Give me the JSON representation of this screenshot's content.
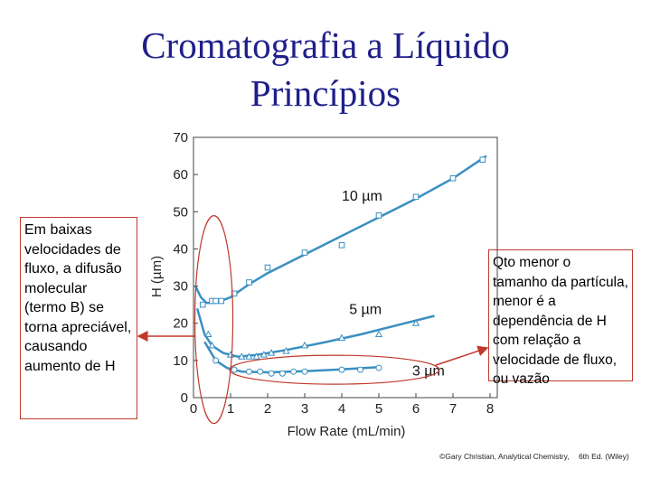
{
  "slide": {
    "title_line1": "Cromatografia a Líquido",
    "title_line2": "Princípios",
    "left_note": "Em baixas velocidades de fluxo, a difusão molecular (termo B) se torna apreciável, causando aumento de H",
    "right_note": "Qto menor o tamanho da partícula, menor é a dependência de H com relação a velocidade de fluxo, ou vazão",
    "credit_part1": "©Gary Christian, Analytical Chemistry,",
    "credit_part2": "6th Ed. (Wiley)"
  },
  "colors": {
    "title": "#1f1f8a",
    "curve": "#3a8fc1",
    "annotation": "#c0392b"
  },
  "chart_data": {
    "type": "scatter",
    "xlabel": "Flow Rate (mL/min)",
    "ylabel": "H (µm)",
    "xlim": [
      0,
      8
    ],
    "ylim": [
      0,
      70
    ],
    "x_ticks": [
      0,
      1,
      2,
      3,
      4,
      5,
      6,
      7,
      8
    ],
    "y_ticks": [
      0,
      10,
      20,
      30,
      40,
      50,
      60,
      70
    ],
    "grid": false,
    "series": [
      {
        "name": "10 µm",
        "marker": "square",
        "points": [
          [
            0.25,
            25
          ],
          [
            0.5,
            26
          ],
          [
            0.6,
            26
          ],
          [
            0.75,
            26
          ],
          [
            1.1,
            28
          ],
          [
            1.5,
            31
          ],
          [
            2.0,
            35
          ],
          [
            3.0,
            39
          ],
          [
            4.0,
            41
          ],
          [
            5.0,
            49
          ],
          [
            6.0,
            54
          ],
          [
            7.0,
            59
          ],
          [
            7.8,
            64
          ]
        ],
        "curve": [
          [
            0.05,
            30
          ],
          [
            0.2,
            27
          ],
          [
            0.35,
            25.5
          ],
          [
            0.6,
            25.5
          ],
          [
            1.0,
            27
          ],
          [
            1.5,
            30.5
          ],
          [
            2.0,
            33.5
          ],
          [
            3.0,
            38.5
          ],
          [
            4.0,
            43.5
          ],
          [
            5.0,
            48.5
          ],
          [
            6.0,
            53.5
          ],
          [
            7.0,
            59
          ],
          [
            7.9,
            65
          ]
        ]
      },
      {
        "name": "5 µm",
        "marker": "triangle",
        "points": [
          [
            0.4,
            17
          ],
          [
            0.5,
            14
          ],
          [
            1.0,
            11.5
          ],
          [
            1.3,
            11
          ],
          [
            1.5,
            11
          ],
          [
            1.7,
            11
          ],
          [
            1.9,
            11.5
          ],
          [
            2.1,
            12
          ],
          [
            2.5,
            12.5
          ],
          [
            3.0,
            14
          ],
          [
            4.0,
            16
          ],
          [
            5.0,
            17
          ],
          [
            6.0,
            20
          ]
        ],
        "curve": [
          [
            0.1,
            24
          ],
          [
            0.3,
            17
          ],
          [
            0.5,
            14
          ],
          [
            0.8,
            12
          ],
          [
            1.2,
            11
          ],
          [
            1.7,
            11.5
          ],
          [
            2.5,
            12.8
          ],
          [
            3.5,
            14.8
          ],
          [
            4.5,
            17
          ],
          [
            5.5,
            19.5
          ],
          [
            6.5,
            22
          ]
        ]
      },
      {
        "name": "3 µm",
        "marker": "circle",
        "points": [
          [
            0.6,
            10
          ],
          [
            1.1,
            7.5
          ],
          [
            1.5,
            7
          ],
          [
            1.8,
            7
          ],
          [
            2.1,
            6.5
          ],
          [
            2.4,
            6.5
          ],
          [
            2.7,
            7
          ],
          [
            3.0,
            7
          ],
          [
            4.0,
            7.5
          ],
          [
            4.5,
            7.5
          ],
          [
            5.0,
            8
          ]
        ],
        "curve": [
          [
            0.3,
            15
          ],
          [
            0.6,
            10
          ],
          [
            0.9,
            8
          ],
          [
            1.3,
            7
          ],
          [
            2.0,
            6.8
          ],
          [
            3.0,
            7.1
          ],
          [
            4.0,
            7.6
          ],
          [
            5.0,
            8.2
          ]
        ]
      }
    ]
  }
}
